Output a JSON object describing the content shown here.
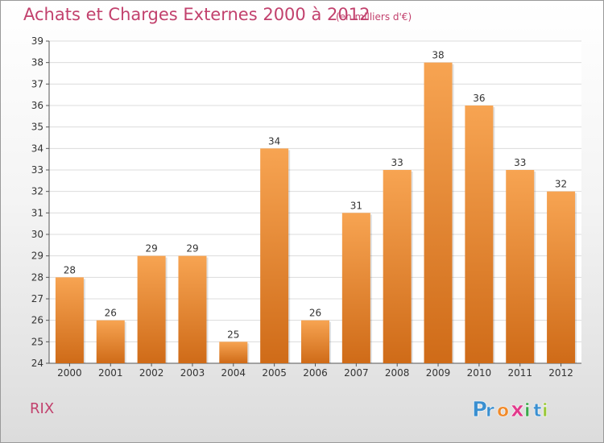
{
  "title": "Achats et Charges Externes 2000 à 2012",
  "unit_label": "(en milliers d'€)",
  "commune": "RIX",
  "brand": {
    "letters": [
      "P",
      "r",
      "o",
      "x",
      "i",
      "t",
      "i"
    ],
    "colors": [
      "#3a8fd0",
      "#3a8fd0",
      "#f08a2a",
      "#e23a8c",
      "#3aa84a",
      "#3a8fd0",
      "#9ac83a"
    ]
  },
  "colors": {
    "text_accent": "#c2416d",
    "bar_top": "#f7a452",
    "bar_bottom": "#cf6b18",
    "grid": "#dcdcdc"
  },
  "chart_data": {
    "type": "bar",
    "categories": [
      "2000",
      "2001",
      "2002",
      "2003",
      "2004",
      "2005",
      "2006",
      "2007",
      "2008",
      "2009",
      "2010",
      "2011",
      "2012"
    ],
    "values": [
      28,
      26,
      29,
      29,
      25,
      34,
      26,
      31,
      33,
      38,
      36,
      33,
      32
    ],
    "data_labels": [
      "28",
      "26",
      "29",
      "29",
      "25",
      "34",
      "26",
      "31",
      "33",
      "38",
      "36",
      "33",
      "32"
    ],
    "ylim": [
      24,
      39
    ],
    "yticks": [
      24,
      25,
      26,
      27,
      28,
      29,
      30,
      31,
      32,
      33,
      34,
      35,
      36,
      37,
      38,
      39
    ],
    "grid": true,
    "legend": "none"
  }
}
